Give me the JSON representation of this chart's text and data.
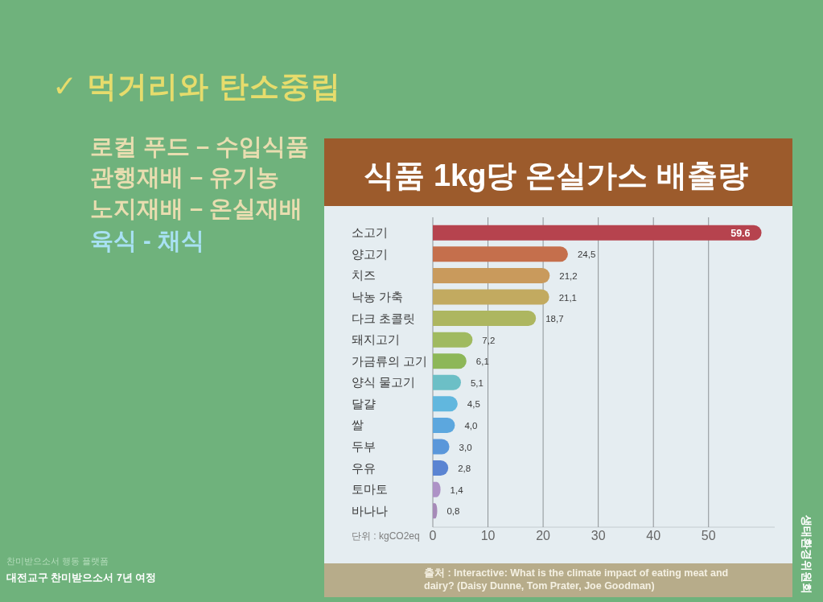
{
  "chart_data": {
    "type": "bar",
    "orientation": "horizontal",
    "title": "식품 1kg당 온실가스 배출량",
    "xlabel": "단위 : kgCO2eq",
    "categories": [
      "소고기",
      "양고기",
      "치즈",
      "낙농 가축",
      "다크 초콜릿",
      "돼지고기",
      "가금류의 고기",
      "양식 물고기",
      "달걀",
      "쌀",
      "두부",
      "우유",
      "토마토",
      "바나나"
    ],
    "values": [
      59.6,
      24.5,
      21.2,
      21.1,
      18.7,
      7.2,
      6.1,
      5.1,
      4.5,
      4.0,
      3.0,
      2.8,
      1.4,
      0.8
    ],
    "colors": [
      "#b6434e",
      "#c56f4c",
      "#c99a5c",
      "#c2aa60",
      "#adb660",
      "#a0ba60",
      "#8db758",
      "#6cbfc6",
      "#61b7de",
      "#5ca7de",
      "#5a97da",
      "#5a84d2",
      "#ad92c6",
      "#a68ab8"
    ],
    "value_labels": [
      "59.6",
      "24,5",
      "21,2",
      "21,1",
      "18,7",
      "7,2",
      "6,1",
      "5,1",
      "4,5",
      "4,0",
      "3,0",
      "2,8",
      "1,4",
      "0,8"
    ],
    "xlim": [
      0,
      62
    ],
    "xticks": [
      0,
      10,
      20,
      30,
      40,
      50
    ],
    "grid": "x",
    "annotations": [
      "✓ 먹거리와 탄소중립",
      "로컬 푸드 – 수입식품",
      "관행재배 – 유기농",
      "노지재배 – 온실재배",
      "육식 - 채식",
      "출처 : Interactive: What is the climate impact of eating meat and dairy? (Daisy Dunne, Tom Prater, Joe Goodman)",
      "찬미받으소서 행동 플랫폼",
      "대전교구 찬미받으소서 7년 여정",
      "생태환경위원회"
    ]
  }
}
